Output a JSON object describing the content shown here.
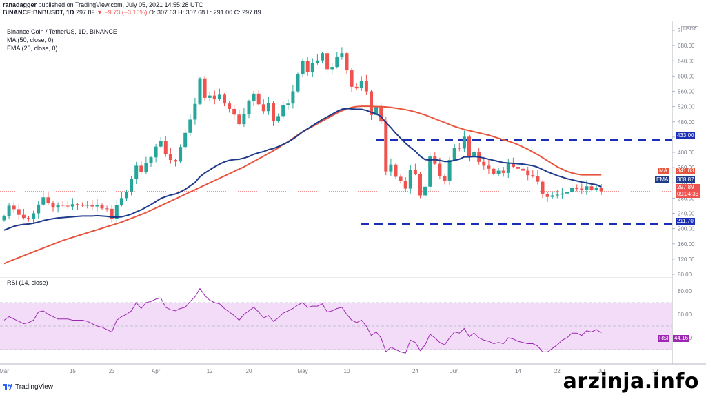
{
  "header": {
    "line1_user": "ranadagger",
    "line1_rest": "published on TradingView.com, July 05, 2021 14:55:28 UTC",
    "symbol": "BINANCE:BNBUSDT, 1D",
    "last": "297.89",
    "change": "▼ −9.73 (−3.16%)",
    "ohlc": "O: 307.63  H: 307.68  L: 291.00  C: 297.89"
  },
  "legend": {
    "title": "Binance Coin / TetherUS, 1D, BINANCE",
    "ma": "MA (50, close, 0)",
    "ema": "EMA (20, close, 0)",
    "rsi": "RSI (14, close)"
  },
  "price_axis": {
    "unit": "USDT",
    "ticks": [
      "720.00",
      "680.00",
      "640.00",
      "600.00",
      "560.00",
      "520.00",
      "480.00",
      "440.00",
      "400.00",
      "360.00",
      "320.00",
      "280.00",
      "240.00",
      "200.00",
      "160.00",
      "120.00",
      "80.00"
    ],
    "tick_values": [
      720,
      680,
      640,
      600,
      560,
      520,
      480,
      440,
      400,
      360,
      320,
      280,
      240,
      200,
      160,
      120,
      80
    ],
    "range": [
      80,
      720
    ]
  },
  "rsi_axis": {
    "ticks": [
      "80.00",
      "60.00",
      "40.00"
    ],
    "tick_values": [
      80,
      60,
      40
    ],
    "range": [
      20,
      90
    ],
    "band": [
      30,
      70
    ]
  },
  "x_axis": {
    "ticks": [
      "Mar",
      "15",
      "23",
      "Apr",
      "12",
      "20",
      "May",
      "10",
      "24",
      "Jun",
      "14",
      "22",
      "Jul",
      "12"
    ],
    "tick_index": [
      0,
      14,
      22,
      31,
      42,
      50,
      61,
      70,
      84,
      92,
      105,
      113,
      122,
      133
    ]
  },
  "badges": {
    "ma_label": "MA",
    "ma_value": "341.03",
    "ema_label": "EMA",
    "ema_value": "308.87",
    "price_value": "297.89",
    "countdown": "09:04:33",
    "level_high": "433.00",
    "level_low": "211.70",
    "rsi_label": "RSI",
    "rsi_value": "44.16"
  },
  "levels": {
    "resistance": 433.0,
    "support": 211.7
  },
  "colors": {
    "up": "#26a69a",
    "down": "#ef5350",
    "ma": "#e8553e",
    "ema": "#1e3a8a",
    "level": "#1a2fb5",
    "rsi": "#9c27b0",
    "rsi_band": "#f2dcf7"
  },
  "chart_data": {
    "type": "candlestick",
    "title": "Binance Coin / TetherUS, 1D, BINANCE",
    "close": [
      232,
      260,
      251,
      236,
      228,
      225,
      240,
      263,
      282,
      268,
      255,
      262,
      260,
      258,
      264,
      262,
      260,
      262,
      258,
      262,
      253,
      252,
      226,
      262,
      280,
      297,
      330,
      365,
      349,
      372,
      387,
      415,
      430,
      395,
      380,
      376,
      414,
      451,
      486,
      527,
      594,
      543,
      549,
      539,
      551,
      528,
      514,
      499,
      474,
      500,
      534,
      554,
      526,
      508,
      530,
      482,
      495,
      523,
      528,
      560,
      605,
      640,
      611,
      634,
      641,
      660,
      618,
      624,
      650,
      660,
      615,
      572,
      568,
      587,
      560,
      498,
      520,
      481,
      350,
      368,
      336,
      325,
      305,
      354,
      344,
      287,
      310,
      389,
      370,
      338,
      326,
      380,
      412,
      410,
      441,
      389,
      401,
      375,
      365,
      357,
      344,
      352,
      346,
      370,
      362,
      357,
      352,
      340,
      338,
      323,
      290,
      283,
      287,
      289,
      292,
      296,
      306,
      305,
      301,
      311,
      302,
      307,
      298
    ],
    "open": [
      222,
      232,
      260,
      251,
      236,
      228,
      225,
      240,
      263,
      282,
      268,
      255,
      262,
      260,
      258,
      264,
      262,
      260,
      262,
      258,
      262,
      253,
      252,
      226,
      262,
      280,
      297,
      330,
      365,
      349,
      372,
      387,
      415,
      430,
      395,
      380,
      376,
      414,
      451,
      486,
      527,
      594,
      543,
      549,
      539,
      551,
      528,
      514,
      499,
      474,
      500,
      534,
      554,
      526,
      508,
      530,
      482,
      495,
      523,
      528,
      560,
      605,
      640,
      611,
      634,
      641,
      660,
      618,
      624,
      650,
      660,
      615,
      572,
      568,
      587,
      560,
      498,
      520,
      481,
      350,
      368,
      336,
      325,
      305,
      354,
      344,
      287,
      310,
      389,
      370,
      338,
      326,
      380,
      412,
      410,
      441,
      389,
      401,
      375,
      365,
      357,
      344,
      352,
      346,
      370,
      362,
      357,
      352,
      340,
      338,
      323,
      290,
      283,
      287,
      289,
      292,
      296,
      306,
      305,
      301,
      311,
      302,
      307
    ],
    "ma50": [
      108,
      114,
      119,
      124,
      129,
      134,
      139,
      144,
      149,
      154,
      159,
      164,
      169,
      173,
      177,
      181,
      185,
      189,
      193,
      197,
      201,
      205,
      209,
      213,
      217,
      222,
      227,
      232,
      237,
      242,
      248,
      254,
      260,
      266,
      272,
      278,
      284,
      290,
      296,
      302,
      308,
      314,
      320,
      326,
      332,
      338,
      344,
      350,
      356,
      362,
      369,
      376,
      383,
      390,
      397,
      404,
      412,
      420,
      428,
      437,
      446,
      454,
      461,
      468,
      475,
      482,
      489,
      496,
      503,
      509,
      514,
      518,
      520,
      521,
      521,
      521,
      520,
      520,
      519,
      518,
      516,
      514,
      512,
      509,
      506,
      502,
      498,
      493,
      488,
      483,
      478,
      473,
      468,
      464,
      460,
      457,
      454,
      451,
      448,
      445,
      441,
      437,
      433,
      429,
      425,
      420,
      414,
      408,
      401,
      394,
      386,
      378,
      370,
      362,
      356,
      350,
      346,
      343,
      341,
      341,
      341,
      341,
      341
    ],
    "ema20": [
      196,
      201,
      206,
      209,
      211,
      212,
      214,
      217,
      221,
      224,
      226,
      228,
      229,
      230,
      231,
      232,
      233,
      233,
      233,
      234,
      233,
      232,
      230,
      230,
      231,
      234,
      238,
      244,
      249,
      256,
      263,
      271,
      279,
      284,
      288,
      291,
      296,
      303,
      312,
      321,
      336,
      346,
      354,
      362,
      369,
      375,
      379,
      381,
      382,
      385,
      389,
      395,
      399,
      402,
      407,
      410,
      415,
      421,
      427,
      435,
      444,
      454,
      462,
      470,
      478,
      486,
      493,
      500,
      507,
      513,
      515,
      514,
      513,
      513,
      510,
      505,
      501,
      494,
      478,
      465,
      450,
      437,
      424,
      413,
      403,
      390,
      381,
      380,
      381,
      379,
      376,
      376,
      379,
      382,
      388,
      388,
      389,
      388,
      385,
      382,
      379,
      376,
      373,
      372,
      371,
      370,
      369,
      367,
      365,
      361,
      355,
      349,
      344,
      339,
      335,
      331,
      328,
      325,
      322,
      320,
      317,
      315,
      309
    ],
    "rsi": [
      55,
      58,
      56,
      54,
      52,
      53,
      55,
      62,
      63,
      60,
      58,
      56,
      56,
      56,
      55,
      55,
      55,
      54,
      52,
      50,
      49,
      47,
      45,
      55,
      58,
      60,
      63,
      70,
      65,
      70,
      71,
      73,
      74,
      66,
      64,
      63,
      65,
      66,
      71,
      75,
      82,
      76,
      72,
      70,
      69,
      65,
      62,
      59,
      55,
      60,
      63,
      66,
      62,
      57,
      59,
      54,
      57,
      61,
      63,
      65,
      68,
      70,
      66,
      67,
      67,
      69,
      62,
      63,
      65,
      66,
      60,
      55,
      53,
      55,
      50,
      42,
      45,
      40,
      28,
      32,
      30,
      28,
      27,
      38,
      36,
      29,
      34,
      43,
      40,
      36,
      34,
      40,
      45,
      44,
      48,
      41,
      44,
      40,
      38,
      37,
      35,
      36,
      35,
      40,
      39,
      37,
      36,
      35,
      35,
      33,
      28,
      28,
      31,
      34,
      38,
      40,
      44,
      44,
      42,
      46,
      45,
      47,
      44.16
    ],
    "xlabel": "",
    "ylabel": ""
  }
}
